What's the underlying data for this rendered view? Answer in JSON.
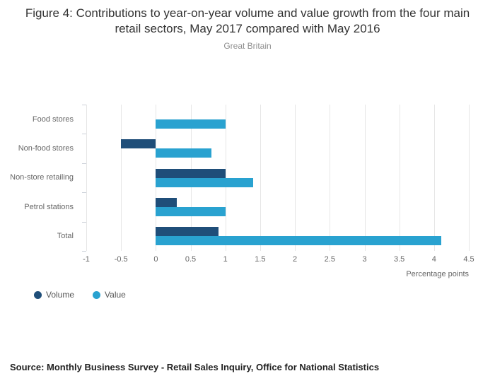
{
  "title": "Figure 4: Contributions to year-on-year volume and value growth from the four main retail sectors, May 2017 compared with May 2016",
  "subtitle": "Great Britain",
  "chart_data": {
    "type": "bar",
    "orientation": "horizontal",
    "title": "Figure 4: Contributions to year-on-year volume and value growth from the four main retail sectors, May 2017 compared with May 2016",
    "subtitle": "Great Britain",
    "categories": [
      "Food stores",
      "Non-food stores",
      "Non-store retailing",
      "Petrol stations",
      "Total"
    ],
    "series": [
      {
        "name": "Volume",
        "color": "#1f4e79",
        "values": [
          0,
          -0.5,
          1.0,
          0.3,
          0.9
        ]
      },
      {
        "name": "Value",
        "color": "#29a2d0",
        "values": [
          1.0,
          0.8,
          1.4,
          1.0,
          4.1
        ]
      }
    ],
    "xlabel": "Percentage points",
    "ylabel": "",
    "xlim": [
      -1,
      4.5
    ],
    "xticks": [
      -1,
      -0.5,
      0,
      0.5,
      1,
      1.5,
      2,
      2.5,
      3,
      3.5,
      4,
      4.5
    ],
    "grid": true,
    "legend_position": "bottom-left"
  },
  "source": "Source: Monthly Business Survey - Retail Sales Inquiry, Office for National Statistics"
}
